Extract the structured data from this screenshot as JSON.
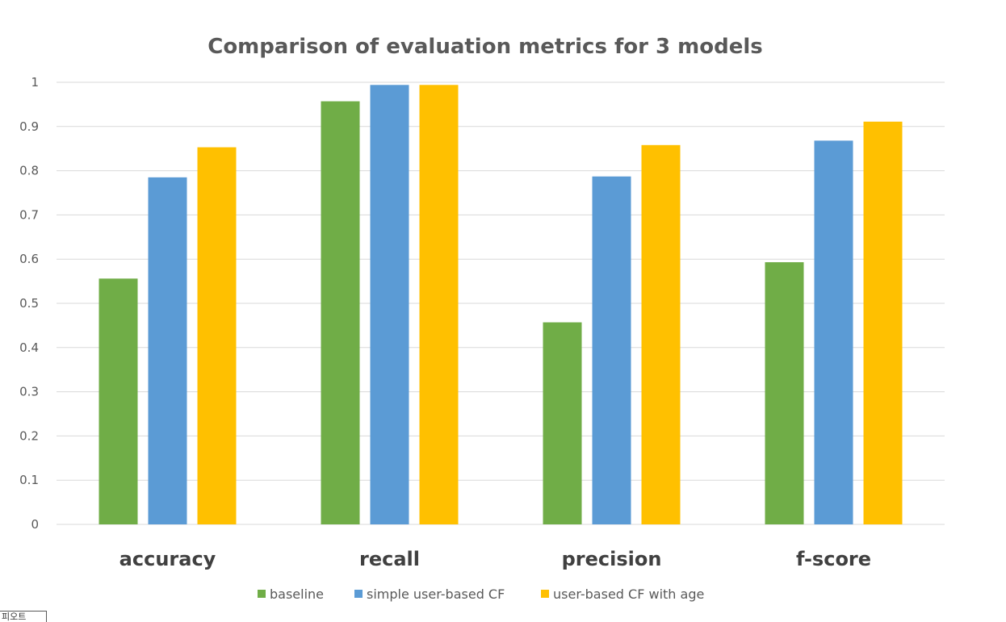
{
  "chart_data": {
    "type": "bar",
    "title": "Comparison of evaluation metrics for 3 models",
    "categories": [
      "accuracy",
      "recall",
      "precision",
      "f-score"
    ],
    "series": [
      {
        "name": "baseline",
        "color": "#70ad47",
        "values": [
          0.556,
          0.957,
          0.457,
          0.593
        ]
      },
      {
        "name": "simple user-based CF",
        "color": "#5b9bd5",
        "values": [
          0.785,
          0.994,
          0.787,
          0.868
        ]
      },
      {
        "name": "user-based CF with age",
        "color": "#ffc000",
        "values": [
          0.853,
          0.994,
          0.858,
          0.911
        ]
      }
    ],
    "ylim": [
      0,
      1
    ],
    "yticks": [
      "0",
      "0.1",
      "0.2",
      "0.3",
      "0.4",
      "0.5",
      "0.6",
      "0.7",
      "0.8",
      "0.9",
      "1"
    ],
    "grid": true,
    "legend_position": "bottom"
  },
  "stray_label": "피오트"
}
